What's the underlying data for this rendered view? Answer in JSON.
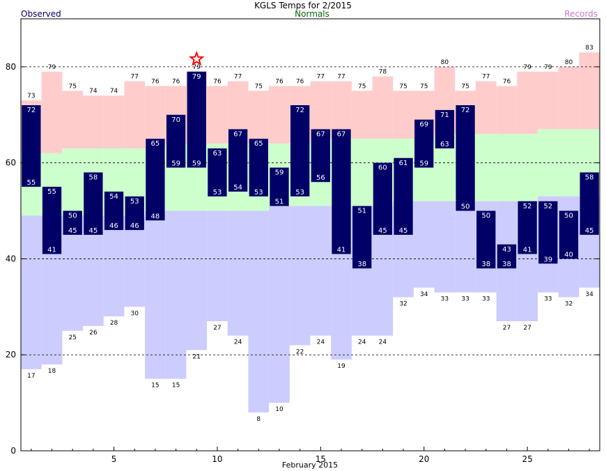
{
  "chart_data": {
    "type": "bar",
    "title": "KGLS Temps for 2/2015",
    "legend": {
      "observed": "Observed",
      "normals": "Normals",
      "records": "Records",
      "placement": "top"
    },
    "xlabel": "February 2015",
    "ylabel": "",
    "xlim": [
      0.5,
      28.5
    ],
    "ylim": [
      0,
      90
    ],
    "x_ticks": [
      5,
      10,
      15,
      20,
      25
    ],
    "y_ticks": [
      0,
      20,
      40,
      60,
      80
    ],
    "gridlines_y": [
      20,
      40,
      60,
      80
    ],
    "colors": {
      "observed": "#000066",
      "observed_label": "#ffffff",
      "normal_band": "#ccffcc",
      "record_high_band": "#ffcccc",
      "record_low_band": "#ccccff",
      "record_text": "#000000",
      "normals_legend": "#006600",
      "records_legend": "#cc77cc",
      "observed_legend": "#000066",
      "star": "#ff0000"
    },
    "days": [
      1,
      2,
      3,
      4,
      5,
      6,
      7,
      8,
      9,
      10,
      11,
      12,
      13,
      14,
      15,
      16,
      17,
      18,
      19,
      20,
      21,
      22,
      23,
      24,
      25,
      26,
      27,
      28
    ],
    "series": [
      {
        "name": "Observed High",
        "values": [
          72,
          55,
          50,
          58,
          54,
          53,
          65,
          70,
          79,
          63,
          67,
          65,
          59,
          72,
          67,
          67,
          51,
          60,
          61,
          69,
          71,
          72,
          50,
          43,
          52,
          52,
          50,
          58
        ]
      },
      {
        "name": "Observed Low",
        "values": [
          55,
          41,
          45,
          45,
          46,
          46,
          48,
          59,
          59,
          53,
          54,
          53,
          51,
          53,
          56,
          41,
          38,
          45,
          45,
          59,
          63,
          50,
          38,
          38,
          41,
          39,
          40,
          45
        ]
      },
      {
        "name": "Normal High",
        "values": [
          62,
          62,
          63,
          63,
          63,
          63,
          63,
          64,
          64,
          64,
          64,
          64,
          64,
          64,
          65,
          65,
          65,
          65,
          65,
          65,
          66,
          66,
          66,
          66,
          66,
          67,
          67,
          67
        ]
      },
      {
        "name": "Normal Low",
        "values": [
          49,
          49,
          49,
          49,
          49,
          49,
          50,
          50,
          50,
          50,
          50,
          50,
          51,
          51,
          51,
          51,
          51,
          51,
          52,
          52,
          52,
          52,
          52,
          52,
          52,
          53,
          53,
          53
        ]
      },
      {
        "name": "Record High",
        "values": [
          73,
          79,
          75,
          74,
          74,
          77,
          76,
          76,
          79,
          76,
          77,
          75,
          76,
          76,
          77,
          77,
          75,
          78,
          75,
          75,
          80,
          75,
          77,
          76,
          79,
          79,
          80,
          83
        ]
      },
      {
        "name": "Record Low",
        "values": [
          17,
          18,
          25,
          26,
          28,
          30,
          15,
          15,
          21,
          27,
          24,
          8,
          10,
          22,
          24,
          19,
          24,
          24,
          32,
          34,
          33,
          33,
          33,
          27,
          27,
          33,
          32,
          34
        ]
      }
    ],
    "record_set_days": [
      9
    ]
  }
}
